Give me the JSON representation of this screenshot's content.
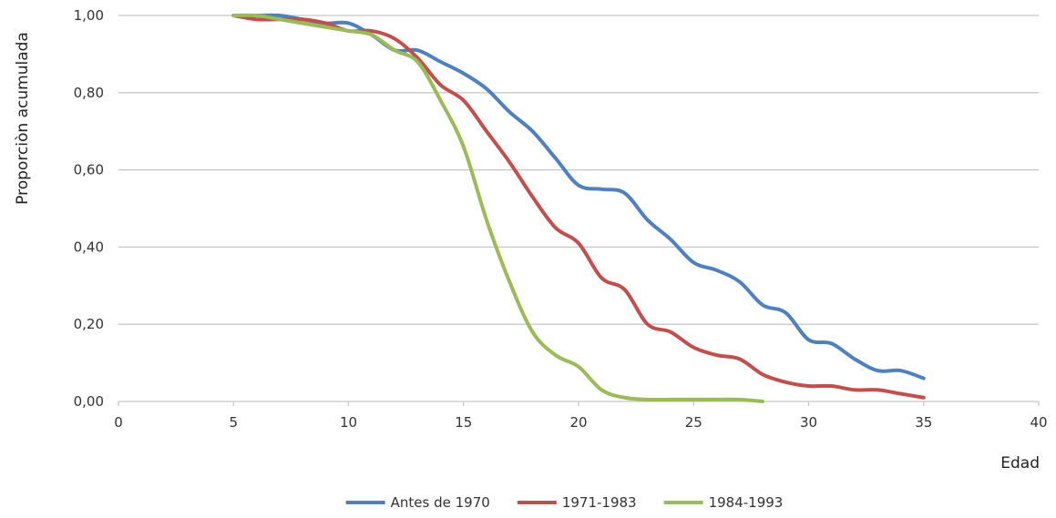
{
  "chart_data": {
    "type": "line",
    "xlabel": "Edad",
    "ylabel": "Proporciòn acumulada",
    "xlim": [
      0,
      40
    ],
    "ylim": [
      0,
      1
    ],
    "x_ticks": [
      "0",
      "5",
      "10",
      "15",
      "20",
      "25",
      "30",
      "35",
      "40"
    ],
    "y_ticks": [
      "0,00",
      "0,20",
      "0,40",
      "0,60",
      "0,80",
      "1,00"
    ],
    "grid": true,
    "legend_position": "bottom",
    "series": [
      {
        "name": "Antes de 1970",
        "color": "#4f81bd",
        "x": [
          5,
          6,
          7,
          8,
          9,
          10,
          11,
          12,
          13,
          14,
          15,
          16,
          17,
          18,
          19,
          20,
          21,
          22,
          23,
          24,
          25,
          26,
          27,
          28,
          29,
          30,
          31,
          32,
          33,
          34,
          35
        ],
        "y": [
          1.0,
          1.0,
          1.0,
          0.99,
          0.98,
          0.98,
          0.95,
          0.91,
          0.91,
          0.88,
          0.85,
          0.81,
          0.75,
          0.7,
          0.63,
          0.56,
          0.55,
          0.54,
          0.47,
          0.42,
          0.36,
          0.34,
          0.31,
          0.25,
          0.23,
          0.16,
          0.15,
          0.11,
          0.08,
          0.08,
          0.06
        ]
      },
      {
        "name": "1971-1983",
        "color": "#c0504d",
        "x": [
          5,
          6,
          7,
          8,
          9,
          10,
          11,
          12,
          13,
          14,
          15,
          16,
          17,
          18,
          19,
          20,
          21,
          22,
          23,
          24,
          25,
          26,
          27,
          28,
          29,
          30,
          31,
          32,
          33,
          34,
          35
        ],
        "y": [
          1.0,
          0.99,
          0.99,
          0.99,
          0.98,
          0.96,
          0.96,
          0.94,
          0.89,
          0.82,
          0.78,
          0.7,
          0.62,
          0.53,
          0.45,
          0.41,
          0.32,
          0.29,
          0.2,
          0.18,
          0.14,
          0.12,
          0.11,
          0.07,
          0.05,
          0.04,
          0.04,
          0.03,
          0.03,
          0.02,
          0.01
        ]
      },
      {
        "name": "1984-1993",
        "color": "#9bbb59",
        "x": [
          5,
          6,
          7,
          8,
          9,
          10,
          11,
          12,
          13,
          14,
          15,
          16,
          17,
          18,
          19,
          20,
          21,
          22,
          23,
          24,
          25,
          26,
          27,
          28
        ],
        "y": [
          1.0,
          1.0,
          0.99,
          0.98,
          0.97,
          0.96,
          0.95,
          0.91,
          0.88,
          0.78,
          0.66,
          0.47,
          0.31,
          0.18,
          0.12,
          0.09,
          0.03,
          0.01,
          0.005,
          0.005,
          0.005,
          0.005,
          0.005,
          0.0
        ]
      }
    ]
  }
}
